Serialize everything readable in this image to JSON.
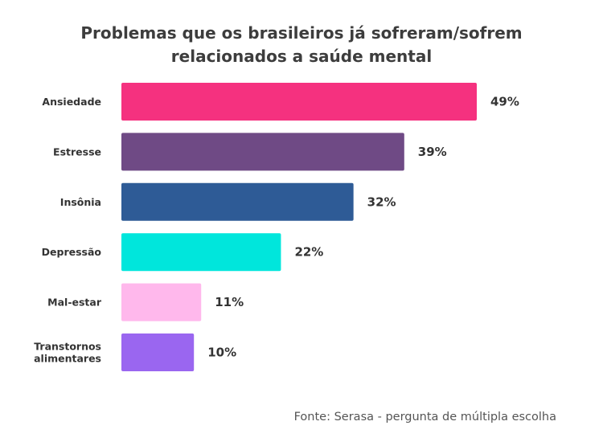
{
  "chart_data": {
    "type": "bar",
    "orientation": "horizontal",
    "title_lines": [
      "Problemas que os brasileiros já sofreram/sofrem",
      "relacionados a saúde mental"
    ],
    "categories": [
      [
        "Ansiedade"
      ],
      [
        "Estresse"
      ],
      [
        "Insônia"
      ],
      [
        "Depressão"
      ],
      [
        "Mal-estar"
      ],
      [
        "Transtornos",
        "alimentares"
      ]
    ],
    "values": [
      49,
      39,
      32,
      22,
      11,
      10
    ],
    "value_labels": [
      "49%",
      "39%",
      "32%",
      "22%",
      "11%",
      "10%"
    ],
    "colors": [
      "#f5317f",
      "#6f4a85",
      "#2e5b96",
      "#00e6dc",
      "#ffb8ec",
      "#9a66f0"
    ],
    "xlim": [
      0,
      49
    ],
    "grid": false,
    "legend": "none",
    "source": "Fonte: Serasa - pergunta de múltipla escolha"
  }
}
